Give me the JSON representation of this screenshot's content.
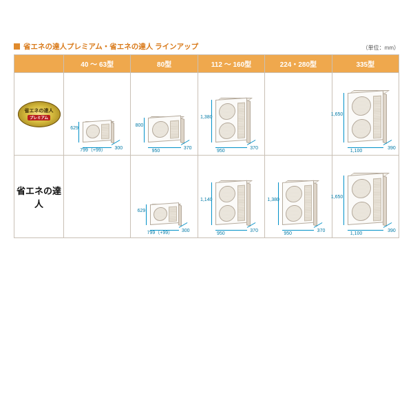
{
  "title": "省エネの達人プレミアム・省エネの達人 ラインアップ",
  "unit_label": "（単位：mm）",
  "columns": [
    "40 ～ 63型",
    "80型",
    "112 ～ 160型",
    "224・280型",
    "335型"
  ],
  "rows": [
    {
      "label_kind": "badge",
      "badge_line1": "省エネの達人",
      "badge_line2": "プレミアム",
      "cells": [
        {
          "size": "small1",
          "h": "629",
          "w": "799（+99）",
          "d": "300"
        },
        {
          "size": "small2",
          "h": "800",
          "w": "950",
          "d": "370"
        },
        {
          "size": "tall1",
          "h": "1,380",
          "w": "950",
          "d": "370"
        },
        null,
        {
          "size": "tall2",
          "h": "1,650",
          "w": "1,100",
          "d": "390"
        }
      ]
    },
    {
      "label_kind": "text",
      "label_text": "省エネの達人",
      "cells": [
        null,
        {
          "size": "small1",
          "h": "629",
          "w": "799（+99）",
          "d": "300"
        },
        {
          "size": "tall1",
          "h": "1,140",
          "w": "950",
          "d": "370"
        },
        {
          "size": "tall1",
          "h": "1,380",
          "w": "950",
          "d": "370"
        },
        {
          "size": "tall2",
          "h": "1,650",
          "w": "1,100",
          "d": "390"
        }
      ]
    }
  ],
  "colors": {
    "accent": "#e08a2c",
    "header_bg": "#efa84d",
    "border": "#c9c0b5",
    "dim_line": "#0090c8",
    "dim_text": "#0079a6"
  }
}
